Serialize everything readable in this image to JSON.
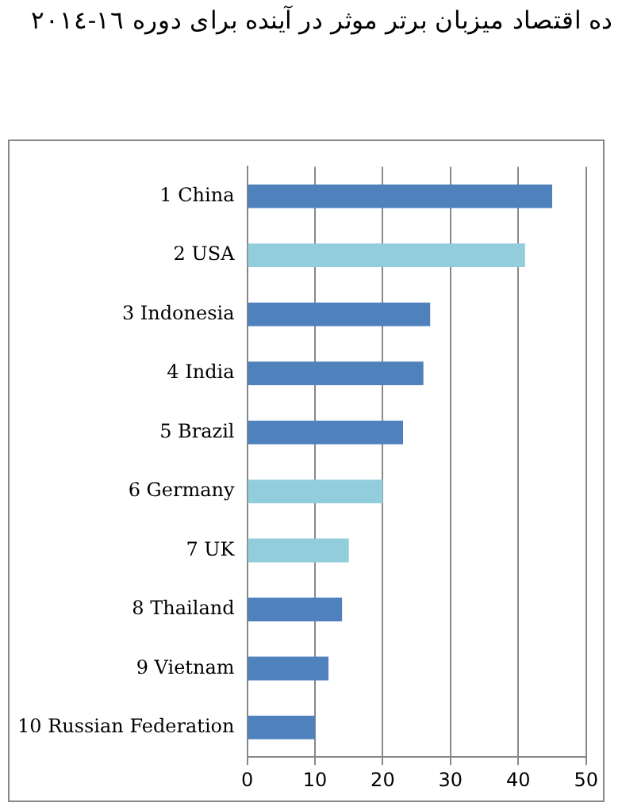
{
  "chart_data": {
    "type": "bar",
    "orientation": "horizontal",
    "title": "ده اقتصاد میزبان برتر موثر در آینده برای دوره ١٦-٢٠١٤",
    "categories": [
      "1 China",
      "2 USA",
      "3 Indonesia",
      "4 India",
      "5 Brazil",
      "6 Germany",
      "7 UK",
      "8 Thailand",
      "9 Vietnam",
      "10 Russian Federation"
    ],
    "values": [
      45,
      41,
      27,
      26,
      23,
      20,
      15,
      14,
      12,
      10
    ],
    "colors": [
      "#4f81bd",
      "#92cddc",
      "#4f81bd",
      "#4f81bd",
      "#4f81bd",
      "#92cddc",
      "#92cddc",
      "#4f81bd",
      "#4f81bd",
      "#4f81bd"
    ],
    "xlim": [
      0,
      50
    ],
    "xticks": [
      0,
      10,
      20,
      30,
      40,
      50
    ],
    "grid": "x",
    "legend": false
  }
}
